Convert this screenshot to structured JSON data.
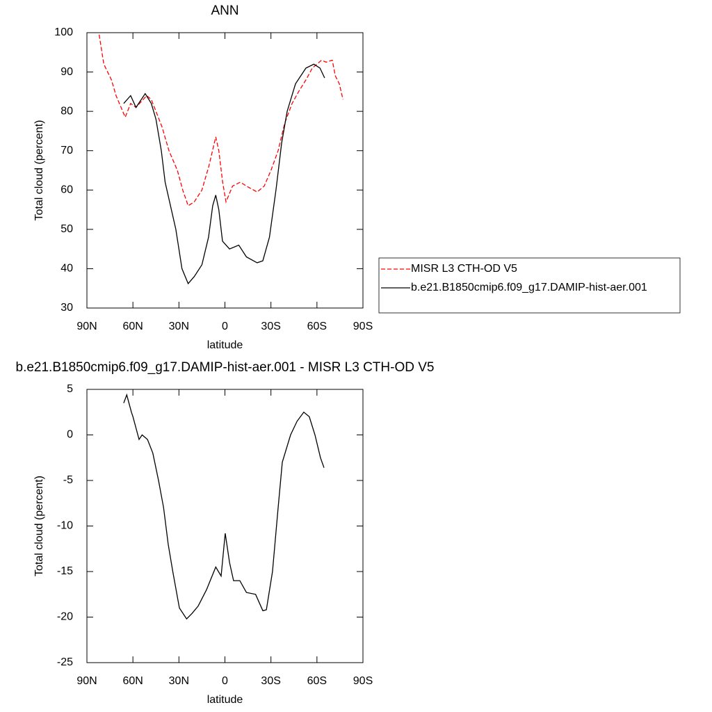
{
  "chart_data": [
    {
      "type": "line",
      "title": "ANN",
      "xlabel": "latitude",
      "ylabel": "Total cloud (percent)",
      "xlim": [
        90,
        -90
      ],
      "ylim": [
        30,
        100
      ],
      "xticks": [
        {
          "value": 90,
          "label": "90N"
        },
        {
          "value": 60,
          "label": "60N"
        },
        {
          "value": 30,
          "label": "30N"
        },
        0,
        {
          "value": -30,
          "label": "30S"
        },
        {
          "value": -60,
          "label": "60S"
        },
        {
          "value": -90,
          "label": "90S"
        }
      ],
      "yticks": [
        30,
        40,
        50,
        60,
        70,
        80,
        90,
        100
      ],
      "series": [
        {
          "name": "MISR L3 CTH-OD V5",
          "color": "#ff0000",
          "dashed": true,
          "x": [
            82,
            79,
            74,
            71,
            65,
            61.5,
            58,
            51,
            48,
            45,
            41,
            36.5,
            31,
            27.5,
            24,
            20,
            15,
            10.5,
            6,
            4,
            1.5,
            -0.7,
            -5,
            -10,
            -14,
            -21,
            -25.6,
            -30,
            -34.7,
            -39,
            -43.8,
            -48,
            -52.8,
            -57,
            -63,
            -66,
            -70,
            -72,
            -74.6,
            -77
          ],
          "values": [
            99.5,
            92,
            88,
            84,
            78.5,
            82,
            81,
            84,
            83,
            80,
            76,
            70,
            65,
            60,
            56,
            57,
            60,
            66,
            73.5,
            70,
            62,
            57,
            61,
            62,
            61,
            59.5,
            61,
            65,
            70,
            77,
            82,
            85,
            88,
            91,
            93,
            92.5,
            93,
            89,
            87,
            83
          ]
        },
        {
          "name": "b.e21.B1850cmip6.f09_g17.DAMIP-hist-aer.001",
          "color": "#000000",
          "dashed": false,
          "x": [
            66,
            61.5,
            58,
            52,
            48,
            45,
            41.5,
            39,
            32,
            28,
            24,
            20,
            15,
            10.7,
            8,
            6,
            4,
            1.6,
            -3,
            -9,
            -14,
            -21,
            -24.7,
            -29,
            -33.3,
            -37,
            -40.6,
            -46,
            -52.8,
            -58,
            -62,
            -65
          ],
          "values": [
            82,
            84,
            81,
            84.5,
            82,
            78,
            70,
            62,
            50,
            40,
            36.2,
            38,
            41,
            48,
            56,
            58.7,
            55,
            47,
            45,
            46,
            43,
            41.5,
            42,
            48,
            60,
            72,
            80,
            87,
            91,
            92,
            91,
            88.5
          ]
        }
      ]
    },
    {
      "type": "line",
      "title": "b.e21.B1850cmip6.f09_g17.DAMIP-hist-aer.001 - MISR L3 CTH-OD V5",
      "xlabel": "latitude",
      "ylabel": "Total cloud (percent)",
      "xlim": [
        90,
        -90
      ],
      "ylim": [
        -25,
        5
      ],
      "xticks": [
        {
          "value": 90,
          "label": "90N"
        },
        {
          "value": 60,
          "label": "60N"
        },
        {
          "value": 30,
          "label": "30N"
        },
        0,
        {
          "value": -30,
          "label": "30S"
        },
        {
          "value": -60,
          "label": "60S"
        },
        {
          "value": -90,
          "label": "90S"
        }
      ],
      "yticks": [
        -25,
        -20,
        -15,
        -10,
        -5,
        0,
        5
      ],
      "series": [
        {
          "color": "#000000",
          "dashed": false,
          "x": [
            66,
            64,
            61,
            60,
            56,
            54,
            50.5,
            47,
            43.3,
            40,
            37,
            34,
            29.7,
            25,
            21.5,
            17.5,
            12,
            6,
            2.5,
            -0.2,
            -3,
            -5.6,
            -9.7,
            -14,
            -20,
            -24.7,
            -27,
            -31,
            -34.7,
            -37.4,
            -42.8,
            -47,
            -51.4,
            -55,
            -58.7,
            -62.3,
            -64.6
          ],
          "values": [
            3.5,
            4.4,
            2.5,
            2,
            -0.5,
            0,
            -0.5,
            -2,
            -5,
            -8,
            -12,
            -15,
            -19,
            -20.2,
            -19.6,
            -18.8,
            -17,
            -14.5,
            -15.5,
            -10.8,
            -14,
            -16,
            -16,
            -17.3,
            -17.5,
            -19.3,
            -19.2,
            -15,
            -8,
            -3,
            0,
            1.5,
            2.5,
            2,
            0,
            -2.5,
            -3.6
          ]
        }
      ]
    }
  ]
}
